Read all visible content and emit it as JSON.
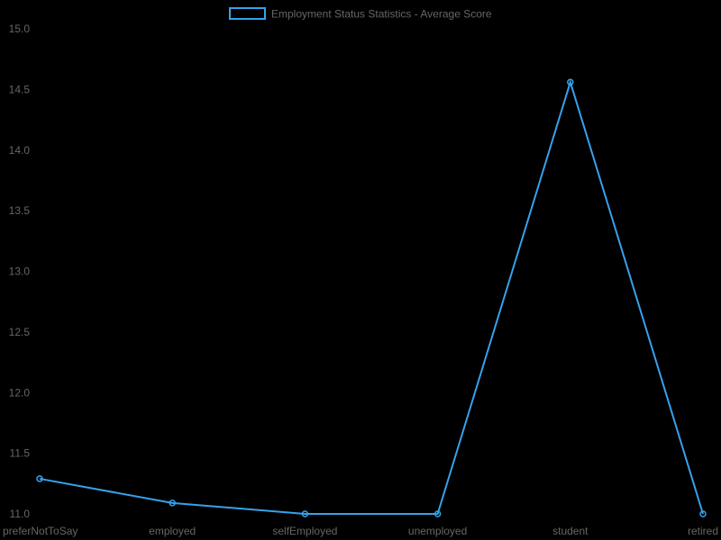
{
  "chart_data": {
    "type": "line",
    "categories": [
      "preferNotToSay",
      "employed",
      "selfEmployed",
      "unemployed",
      "student",
      "retired"
    ],
    "series": [
      {
        "name": "Employment Status Statistics - Average Score",
        "values": [
          11.29,
          11.09,
          11.0,
          11.0,
          14.56,
          11.0
        ]
      }
    ],
    "ylim": [
      11.0,
      15.0
    ],
    "yticks": [
      "15.0",
      "14.5",
      "14.0",
      "13.5",
      "13.0",
      "12.5",
      "12.0",
      "11.5",
      "11.0"
    ],
    "grid": false,
    "legend_position": "top-center"
  },
  "colors": {
    "background": "#000000",
    "series_line": "#36a2eb",
    "text": "#666666"
  }
}
